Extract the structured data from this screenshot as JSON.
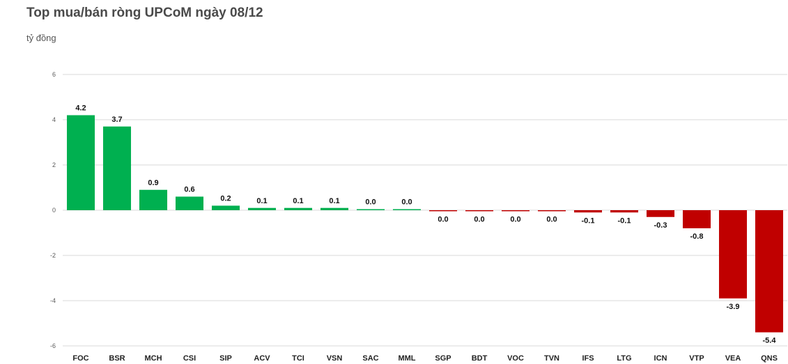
{
  "chart_data": {
    "type": "bar",
    "title": "Top mua/bán ròng UPCoM ngày 08/12",
    "unit_label": "tỷ đồng",
    "xlabel": "",
    "ylabel": "",
    "ylim": [
      -6,
      6
    ],
    "yticks": [
      "6",
      "4",
      "2",
      "0",
      "-2",
      "-4",
      "-6"
    ],
    "grid": true,
    "legend": "none",
    "categories": [
      "FOC",
      "BSR",
      "MCH",
      "CSI",
      "SIP",
      "ACV",
      "TCI",
      "VSN",
      "SAC",
      "MML",
      "SGP",
      "BDT",
      "VOC",
      "TVN",
      "IFS",
      "LTG",
      "ICN",
      "VTP",
      "VEA",
      "QNS"
    ],
    "values": [
      4.2,
      3.7,
      0.9,
      0.6,
      0.2,
      0.1,
      0.1,
      0.1,
      0.0,
      0.0,
      0.0,
      0.0,
      0.0,
      0.0,
      -0.1,
      -0.1,
      -0.3,
      -0.8,
      -3.9,
      -5.4
    ],
    "labels": [
      "4.2",
      "3.7",
      "0.9",
      "0.6",
      "0.2",
      "0.1",
      "0.1",
      "0.1",
      "0.0",
      "0.0",
      "0.0",
      "0.0",
      "0.0",
      "0.0",
      "-0.1",
      "-0.1",
      "-0.3",
      "-0.8",
      "-3.9",
      "-5.4"
    ],
    "colors": {
      "positive": "#00b050",
      "negative": "#c00000"
    }
  }
}
